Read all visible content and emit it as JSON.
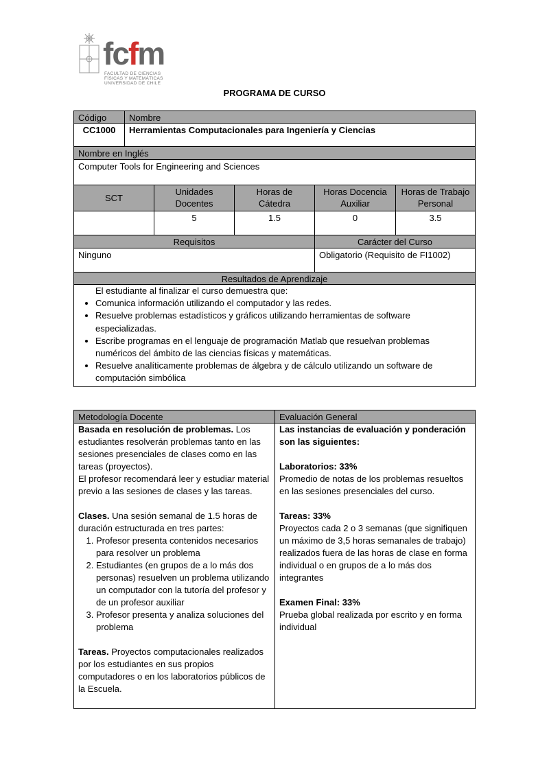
{
  "logo": {
    "brand": "fcfm",
    "lines": [
      "FACULTAD DE CIENCIAS",
      "FÍSICAS Y MATEMÁTICAS",
      "UNIVERSIDAD DE CHILE"
    ]
  },
  "title": "PROGRAMA DE CURSO",
  "course": {
    "code_label": "Código",
    "name_label": "Nombre",
    "code": "CC1000",
    "name": "Herramientas Computacionales para Ingeniería y Ciencias",
    "english_label": "Nombre en Inglés",
    "english_name": "Computer Tools for Engineering and Sciences"
  },
  "hours": {
    "headers": [
      "SCT",
      "Unidades Docentes",
      "Horas de Cátedra",
      "Horas Docencia Auxiliar",
      "Horas de Trabajo Personal"
    ],
    "values": [
      "",
      "5",
      "1.5",
      "0",
      "3.5"
    ]
  },
  "requirements": {
    "label": "Requisitos",
    "value": "Ninguno",
    "character_label": "Carácter del Curso",
    "character": "Obligatorio (Requisito de FI1002)"
  },
  "outcomes": {
    "label": "Resultados de Aprendizaje",
    "intro": "El estudiante al finalizar el curso demuestra que:",
    "items": [
      "Comunica información utilizando el computador y las redes.",
      "Resuelve problemas estadísticos y gráficos utilizando herramientas de software especializadas.",
      "Escribe programas en el lenguaje de programación Matlab que resuelvan problemas numéricos del ámbito de las ciencias físicas y matemáticas.",
      "Resuelve analíticamente problemas de álgebra y de cálculo utilizando un software de computación simbólica"
    ]
  },
  "methodology": {
    "label": "Metodología Docente",
    "p1_bold": "Basada en resolución de problemas.",
    "p1": " Los estudiantes resolverán problemas tanto en las sesiones presenciales de clases como en las tareas (proyectos).",
    "p2": "El profesor recomendará leer y estudiar material previo a las sesiones de clases y las tareas.",
    "classes_bold": "Clases.",
    "classes": " Una sesión semanal de 1.5 horas de duración estructurada  en tres partes:",
    "steps": [
      "Profesor presenta contenidos necesarios para resolver un problema",
      "Estudiantes (en grupos de a lo más dos personas) resuelven un problema utilizando un computador con la tutoría del profesor y de un profesor auxiliar",
      "Profesor presenta y analiza soluciones del problema"
    ],
    "tasks_bold": "Tareas.",
    "tasks": " Proyectos computacionales realizados por los estudiantes en sus propios computadores o en los laboratorios públicos de la Escuela."
  },
  "evaluation": {
    "label": "Evaluación General",
    "intro": "Las instancias de evaluación y ponderación son las siguientes:",
    "items": [
      {
        "title": "Laboratorios: 33%",
        "text": "Promedio de notas de los problemas resueltos en las sesiones presenciales del curso."
      },
      {
        "title": "Tareas: 33%",
        "text": "Proyectos cada 2 o 3 semanas (que signifiquen un máximo de 3,5 horas semanales de trabajo) realizados fuera de las horas de clase en forma individual o en grupos de a lo más dos integrantes"
      },
      {
        "title": "Examen Final: 33%",
        "text": "Prueba global realizada por escrito y en forma individual"
      }
    ]
  }
}
